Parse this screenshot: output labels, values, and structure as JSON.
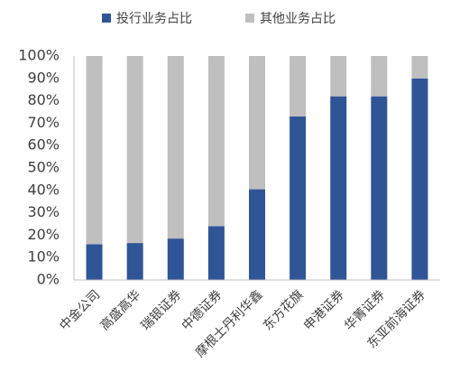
{
  "chart_data": {
    "type": "stacked_bar",
    "categories": [
      "中金公司",
      "高盛高华",
      "瑞银证券",
      "中德证券",
      "摩根士丹利华鑫",
      "东方花旗",
      "申港证券",
      "华菁证券",
      "东亚前海证券"
    ],
    "series": [
      {
        "name": "投行业务占比",
        "color": "#2f5597",
        "values": [
          16,
          16.5,
          18.5,
          24,
          40.5,
          73,
          82,
          82,
          90
        ]
      },
      {
        "name": "其他业务占比",
        "color": "#bfbfbf",
        "values": [
          84,
          83.5,
          81.5,
          76,
          59.5,
          27,
          18,
          18,
          10
        ]
      }
    ],
    "ylim": [
      0,
      100
    ],
    "yticks": [
      {
        "value": 0,
        "label": "0%"
      },
      {
        "value": 10,
        "label": "10%"
      },
      {
        "value": 20,
        "label": "20%"
      },
      {
        "value": 30,
        "label": "30%"
      },
      {
        "value": 40,
        "label": "40%"
      },
      {
        "value": 50,
        "label": "50%"
      },
      {
        "value": 60,
        "label": "60%"
      },
      {
        "value": 70,
        "label": "70%"
      },
      {
        "value": 80,
        "label": "80%"
      },
      {
        "value": 90,
        "label": "90%"
      },
      {
        "value": 100,
        "label": "100%"
      }
    ],
    "legend": "top"
  }
}
